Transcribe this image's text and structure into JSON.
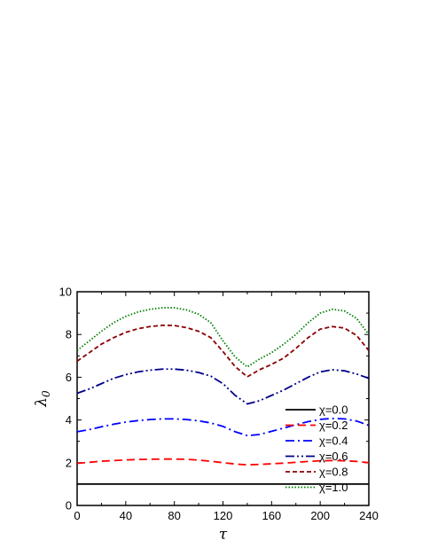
{
  "chart_data": {
    "type": "line",
    "xlabel": "τ",
    "ylabel": "λ",
    "ylabel_subscript": "0",
    "xlim": [
      0,
      240
    ],
    "ylim": [
      0,
      10
    ],
    "x_ticks": [
      "0",
      "40",
      "80",
      "120",
      "160",
      "200",
      "240"
    ],
    "y_ticks": [
      "0",
      "2",
      "4",
      "6",
      "8",
      "10"
    ],
    "grid": false,
    "legend_position": "bottom-right",
    "x": [
      0,
      10,
      20,
      30,
      40,
      50,
      60,
      70,
      80,
      90,
      100,
      110,
      120,
      130,
      140,
      150,
      160,
      170,
      180,
      190,
      200,
      210,
      220,
      230,
      240
    ],
    "series": [
      {
        "name": "χ=0.0",
        "color": "#000000",
        "dash": "solid",
        "values": [
          1.0,
          1.0,
          1.0,
          1.0,
          1.0,
          1.0,
          1.0,
          1.0,
          1.0,
          1.0,
          1.0,
          1.0,
          1.0,
          1.0,
          1.0,
          1.0,
          1.0,
          1.0,
          1.0,
          1.0,
          1.0,
          1.0,
          1.0,
          1.0,
          1.0
        ]
      },
      {
        "name": "χ=0.2",
        "color": "#ff0000",
        "dash": "dash",
        "values": [
          1.97,
          2.02,
          2.07,
          2.1,
          2.13,
          2.15,
          2.16,
          2.17,
          2.17,
          2.16,
          2.12,
          2.07,
          2.0,
          1.94,
          1.9,
          1.92,
          1.95,
          1.98,
          2.02,
          2.06,
          2.09,
          2.1,
          2.09,
          2.06,
          2.0
        ]
      },
      {
        "name": "χ=0.4",
        "color": "#0000ff",
        "dash": "dashdot",
        "values": [
          3.45,
          3.55,
          3.68,
          3.8,
          3.9,
          3.97,
          4.02,
          4.05,
          4.05,
          4.02,
          3.96,
          3.86,
          3.7,
          3.45,
          3.27,
          3.32,
          3.47,
          3.62,
          3.78,
          3.92,
          4.03,
          4.07,
          4.05,
          3.95,
          3.75
        ]
      },
      {
        "name": "χ=0.6",
        "color": "#00008b",
        "dash": "dashdotdot",
        "values": [
          5.25,
          5.45,
          5.7,
          5.95,
          6.12,
          6.25,
          6.33,
          6.38,
          6.38,
          6.33,
          6.22,
          6.05,
          5.7,
          5.15,
          4.75,
          4.9,
          5.15,
          5.4,
          5.7,
          6.0,
          6.25,
          6.35,
          6.3,
          6.15,
          5.95
        ]
      },
      {
        "name": "χ=0.8",
        "color": "#8b0000",
        "dash": "shortdash",
        "values": [
          6.75,
          7.15,
          7.55,
          7.85,
          8.1,
          8.27,
          8.37,
          8.43,
          8.42,
          8.32,
          8.15,
          7.85,
          7.2,
          6.5,
          6.02,
          6.35,
          6.6,
          6.9,
          7.35,
          7.85,
          8.25,
          8.37,
          8.3,
          7.95,
          7.25
        ]
      },
      {
        "name": "χ=1.0",
        "color": "#008000",
        "dash": "dot",
        "values": [
          7.25,
          7.7,
          8.15,
          8.55,
          8.85,
          9.05,
          9.18,
          9.25,
          9.25,
          9.15,
          8.95,
          8.55,
          7.7,
          6.95,
          6.48,
          6.85,
          7.15,
          7.55,
          8.0,
          8.55,
          9.0,
          9.18,
          9.1,
          8.75,
          8.0
        ]
      }
    ]
  }
}
